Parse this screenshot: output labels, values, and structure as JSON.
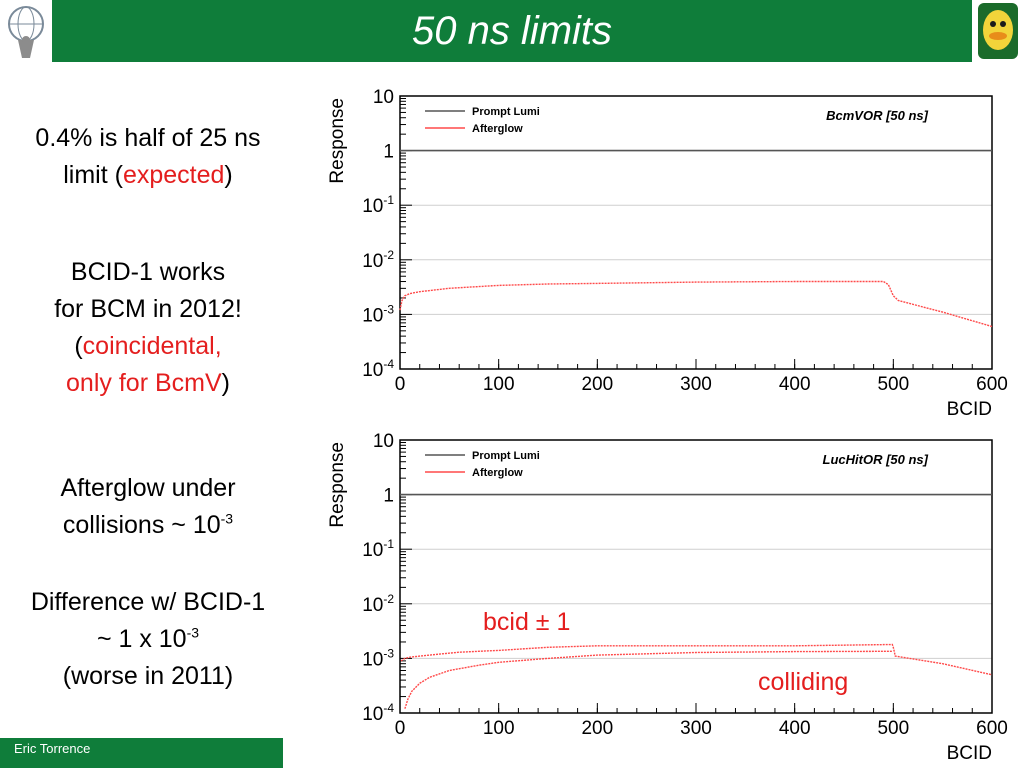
{
  "header": {
    "title": "50 ns limits",
    "left_logo": "atlas-logo",
    "right_logo": "duck-mascot-logo"
  },
  "side": {
    "line1": "0.4% is half of 25 ns",
    "line2_a": "limit (",
    "line2_red": "expected",
    "line2_b": ")",
    "bcid_line1": "BCID-1 works",
    "bcid_line2": "for BCM in 2012!",
    "bcid_line3_a": "(",
    "bcid_line3_red": "coincidental,",
    "bcid_line4_red": "only for BcmV",
    "bcid_line4_b": ")",
    "after_line1": "Afterglow under",
    "after_line2": "collisions ~ 10",
    "after_exp": "-3",
    "diff_line1": "Difference w/ BCID-1",
    "diff_line2": "~ 1 x 10",
    "diff_exp": "-3",
    "diff_line3": "(worse in 2011)"
  },
  "footer": {
    "author": "Eric Torrence"
  },
  "annotations": {
    "bcid_pm": "bcid ± 1",
    "colliding": "colliding"
  },
  "colors": {
    "green": "#0f7d3a",
    "red": "#e41e1e",
    "prompt": "#555555",
    "afterglow": "#ff4a4a"
  },
  "chart_data": [
    {
      "type": "line",
      "title": "BcmVOR [50 ns]",
      "xlabel": "BCID",
      "ylabel": "Response",
      "xlim": [
        0,
        600
      ],
      "ylim": [
        0.0001,
        10
      ],
      "yscale": "log",
      "xticks": [
        "0",
        "100",
        "200",
        "300",
        "400",
        "500",
        "600"
      ],
      "yticks": [
        {
          "base": "10",
          "exp": "-4"
        },
        {
          "base": "10",
          "exp": "-3"
        },
        {
          "base": "10",
          "exp": "-2"
        },
        {
          "base": "10",
          "exp": "-1"
        },
        {
          "base": "1",
          "exp": ""
        },
        {
          "base": "10",
          "exp": ""
        }
      ],
      "legend": [
        "Prompt Lumi",
        "Afterglow"
      ],
      "legend_position": "top-left",
      "series": [
        {
          "name": "Prompt Lumi",
          "x": [
            0,
            600
          ],
          "y": [
            1,
            1
          ]
        },
        {
          "name": "Afterglow",
          "x": [
            0,
            2,
            5,
            10,
            20,
            50,
            100,
            150,
            200,
            300,
            400,
            490,
            495,
            500,
            505,
            510,
            550,
            600
          ],
          "y": [
            0.0012,
            0.0018,
            0.0022,
            0.0024,
            0.0026,
            0.003,
            0.0034,
            0.0036,
            0.0037,
            0.0039,
            0.004,
            0.004,
            0.0035,
            0.0022,
            0.0018,
            0.0017,
            0.0011,
            0.0006
          ]
        }
      ]
    },
    {
      "type": "line",
      "title": "LucHitOR [50 ns]",
      "xlabel": "BCID",
      "ylabel": "Response",
      "xlim": [
        0,
        600
      ],
      "ylim": [
        0.0001,
        10
      ],
      "yscale": "log",
      "xticks": [
        "0",
        "100",
        "200",
        "300",
        "400",
        "500",
        "600"
      ],
      "yticks": [
        {
          "base": "10",
          "exp": "-4"
        },
        {
          "base": "10",
          "exp": "-3"
        },
        {
          "base": "10",
          "exp": "-2"
        },
        {
          "base": "10",
          "exp": "-1"
        },
        {
          "base": "1",
          "exp": ""
        },
        {
          "base": "10",
          "exp": ""
        }
      ],
      "legend": [
        "Prompt Lumi",
        "Afterglow"
      ],
      "legend_position": "top-left",
      "series": [
        {
          "name": "Prompt Lumi",
          "x": [
            0,
            600
          ],
          "y": [
            1,
            1
          ]
        },
        {
          "name": "Afterglow",
          "x": [
            1,
            3,
            5,
            10,
            20,
            40,
            60,
            100,
            150,
            200,
            300,
            400,
            499,
            500,
            502,
            550,
            600
          ],
          "y": [
            0.0009,
            0.00095,
            0.001,
            0.00105,
            0.0011,
            0.0012,
            0.0013,
            0.0014,
            0.0016,
            0.0017,
            0.0017,
            0.0017,
            0.0018,
            0.0016,
            0.0011,
            0.0008,
            0.0005
          ]
        },
        {
          "name": "Afterglow",
          "x": [
            5,
            8,
            12,
            20,
            30,
            50,
            80,
            100,
            150,
            200,
            300,
            400,
            499
          ],
          "y": [
            0.00012,
            0.00018,
            0.00025,
            0.00035,
            0.00045,
            0.0006,
            0.00075,
            0.00085,
            0.001,
            0.00115,
            0.00128,
            0.00133,
            0.00135
          ]
        }
      ]
    }
  ]
}
